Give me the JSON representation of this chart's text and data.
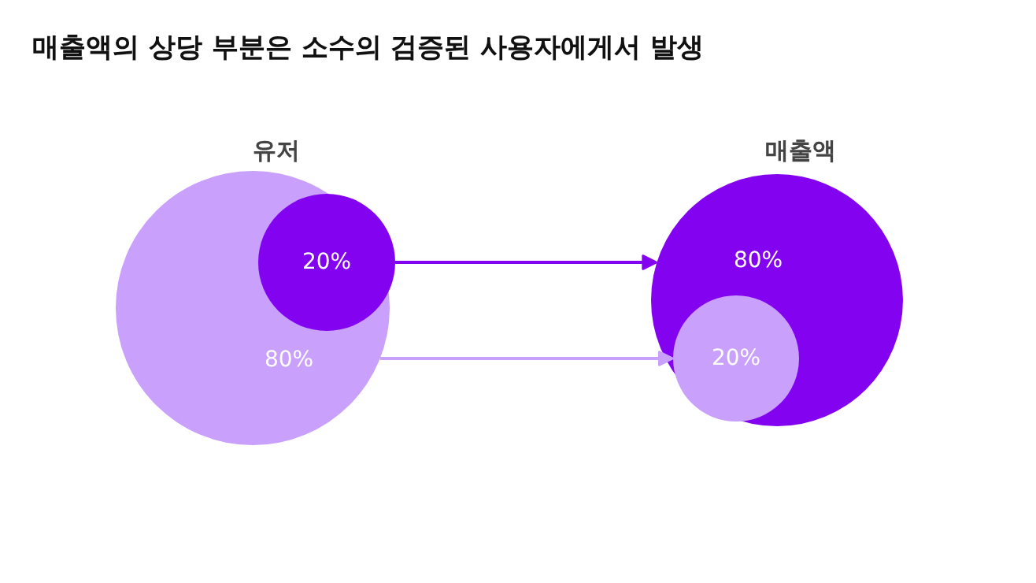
{
  "chart_data": {
    "type": "other",
    "title": "매출액의 상당 부분은 소수의 검증된 사용자에게서 발생",
    "categories": [
      "유저",
      "매출액"
    ],
    "series": [
      {
        "color": "#8303f0",
        "values": [
          20,
          80
        ],
        "value_labels": [
          "20%",
          "80%"
        ]
      },
      {
        "color": "#c9a0fb",
        "values": [
          80,
          20
        ],
        "value_labels": [
          "80%",
          "20%"
        ]
      }
    ]
  }
}
